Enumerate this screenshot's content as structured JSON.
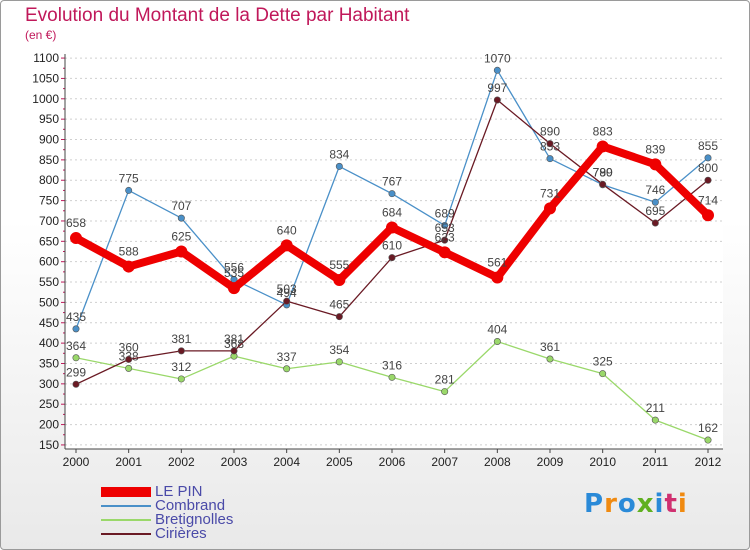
{
  "chart_data": {
    "type": "line",
    "title": "Evolution du Montant de la Dette par Habitant",
    "subtitle": "(en €)",
    "xlabel": "",
    "ylabel": "",
    "ylim": [
      140,
      1110
    ],
    "yticks": [
      150,
      200,
      250,
      300,
      350,
      400,
      450,
      500,
      550,
      600,
      650,
      700,
      750,
      800,
      850,
      900,
      950,
      1000,
      1050,
      1100
    ],
    "x": [
      "2000",
      "2001",
      "2002",
      "2003",
      "2004",
      "2005",
      "2006",
      "2007",
      "2008",
      "2009",
      "2010",
      "2011",
      "2012"
    ],
    "grid": "horizontal dotted",
    "legend_position": "bottom-left",
    "series": [
      {
        "name": "Combrand",
        "color": "#4a90c8",
        "values": [
          435,
          775,
          707,
          556,
          494,
          834,
          767,
          689,
          1070,
          853,
          789,
          746,
          855
        ]
      },
      {
        "name": "Bretignolles",
        "color": "#9ad86a",
        "values": [
          364,
          338,
          312,
          368,
          337,
          354,
          316,
          281,
          404,
          361,
          325,
          211,
          162
        ]
      },
      {
        "name": "Cirières",
        "color": "#6a1a24",
        "values": [
          299,
          360,
          381,
          381,
          503,
          465,
          610,
          653,
          997,
          890,
          790,
          695,
          800
        ]
      },
      {
        "name": "LE PIN",
        "color": "#ee0000",
        "values": [
          658,
          588,
          625,
          535,
          640,
          555,
          684,
          623,
          561,
          731,
          883,
          839,
          714
        ]
      }
    ]
  },
  "logo": {
    "text": "Proxiti",
    "letter_colors": [
      "#2a8ad8",
      "#f08a10",
      "#2a8ad8",
      "#60b020",
      "#2a8ad8",
      "#d03070",
      "#f08a10"
    ]
  }
}
